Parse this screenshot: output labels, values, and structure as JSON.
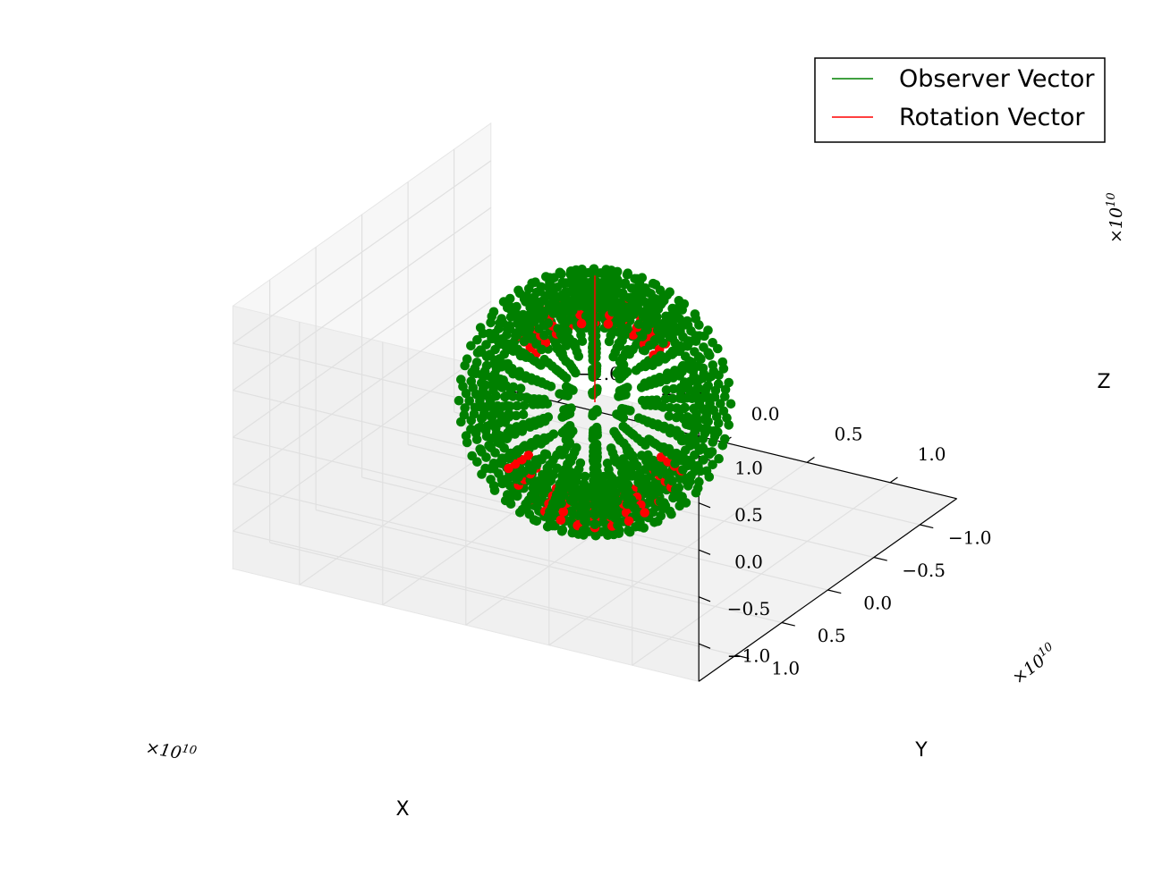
{
  "chart_data": {
    "type": "scatter",
    "projection": "3d",
    "title": "",
    "xlabel": "X",
    "ylabel": "Y",
    "zlabel": "Z",
    "xlim": [
      -1.4,
      1.4
    ],
    "ylim": [
      -1.4,
      1.4
    ],
    "zlim": [
      -1.4,
      1.4
    ],
    "axis_scale_label": "×10^10",
    "offset_text": {
      "x": "×10",
      "y": "×10",
      "z": "×10",
      "exp": "10"
    },
    "ticks": {
      "x": [
        -1.0,
        -0.5,
        0.0,
        0.5,
        1.0
      ],
      "y": [
        -1.0,
        -0.5,
        0.0,
        0.5,
        1.0
      ],
      "z": [
        -1.0,
        -0.5,
        0.0,
        0.5,
        1.0
      ]
    },
    "tick_labels": {
      "x": [
        "−1.0",
        "−0.5",
        "0.0",
        "0.5",
        "1.0"
      ],
      "y": [
        "−1.0",
        "−0.5",
        "0.0",
        "0.5",
        "1.0"
      ],
      "z": [
        "−1.0",
        "−0.5",
        "0.0",
        "0.5",
        "1.0"
      ]
    },
    "grid": true,
    "legend": {
      "position": "top-right",
      "entries": [
        {
          "label": "Observer Vector",
          "color": "#008000"
        },
        {
          "label": "Rotation Vector",
          "color": "#ff0000"
        }
      ]
    },
    "series": [
      {
        "name": "Observer Vector",
        "color": "#008000",
        "marker": "circle",
        "description_values": {
          "rings_radius": [
            1.0,
            1.1,
            1.2,
            1.3
          ],
          "tilt_angles_deg": [
            0,
            15,
            30,
            45,
            60,
            75,
            90,
            105,
            120,
            135,
            150,
            165
          ]
        }
      },
      {
        "name": "Rotation Vector",
        "color": "#ff0000",
        "marker": "circle",
        "line_segment": [
          [
            0,
            0,
            0
          ],
          [
            0,
            0,
            1.35
          ]
        ],
        "description_values": {
          "rings_radius": [
            1.0,
            1.1,
            1.2,
            1.3
          ]
        }
      }
    ]
  }
}
